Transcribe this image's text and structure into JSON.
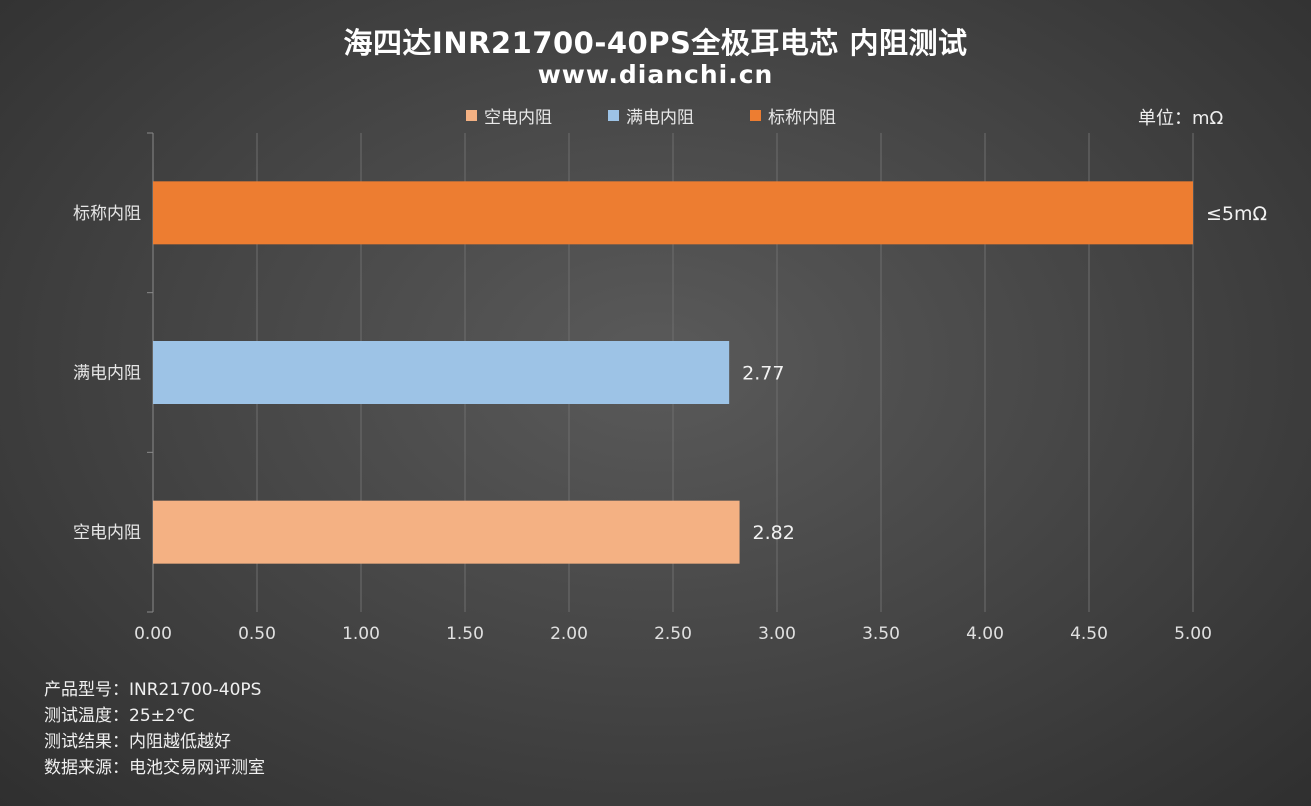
{
  "title": "海四达INR21700-40PS全极耳电芯 内阻测试",
  "subtitle": "www.dianchi.cn",
  "unit_label": "单位：mΩ",
  "colors": {
    "empty": "#F4B183",
    "full": "#9DC3E6",
    "nominal": "#ED7D31",
    "grid": "#6e6e6e",
    "axis": "#8a8a8a"
  },
  "legend": [
    {
      "label": "空电内阻",
      "color": "#F4B183"
    },
    {
      "label": "满电内阻",
      "color": "#9DC3E6"
    },
    {
      "label": "标称内阻",
      "color": "#ED7D31"
    }
  ],
  "chart_data": {
    "type": "bar",
    "orientation": "horizontal",
    "categories": [
      "标称内阻",
      "满电内阻",
      "空电内阻"
    ],
    "values": [
      5.0,
      2.77,
      2.82
    ],
    "data_labels": [
      "≤5mΩ",
      "2.77",
      "2.82"
    ],
    "bar_colors": [
      "#ED7D31",
      "#9DC3E6",
      "#F4B183"
    ],
    "xlim": [
      0,
      5
    ],
    "x_ticks": [
      "0.00",
      "0.50",
      "1.00",
      "1.50",
      "2.00",
      "2.50",
      "3.00",
      "3.50",
      "4.00",
      "4.50",
      "5.00"
    ],
    "x_tick_values": [
      0,
      0.5,
      1.0,
      1.5,
      2.0,
      2.5,
      3.0,
      3.5,
      4.0,
      4.5,
      5.0
    ],
    "grid": true,
    "legend_position": "top"
  },
  "footer": [
    "产品型号：INR21700-40PS",
    "测试温度：25±2℃",
    "测试结果：内阻越低越好",
    "数据来源：电池交易网评测室"
  ]
}
